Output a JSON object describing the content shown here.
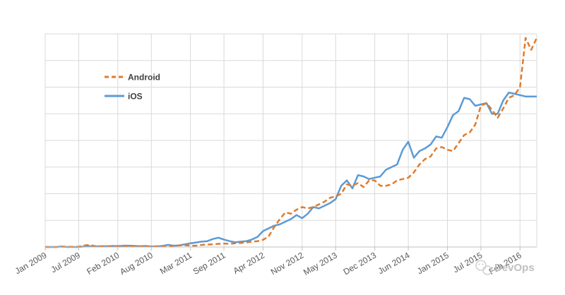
{
  "chart_data": {
    "type": "line",
    "title": "",
    "xlabel": "",
    "ylabel": "",
    "x_tick_labels": [
      "Jan 2009",
      "Jul 2009",
      "Feb 2010",
      "Aug 2010",
      "Mar 2011",
      "Sep 2011",
      "Apr 2012",
      "Nov 2012",
      "May 2013",
      "Dec 2013",
      "Jun 2014",
      "Jan 2015",
      "Jul 2015",
      "Feb 2016"
    ],
    "x_tick_months": [
      0,
      6,
      13,
      19,
      26,
      32,
      39,
      46,
      52,
      59,
      65,
      72,
      78,
      85
    ],
    "x_range_months": [
      0,
      88
    ],
    "y_range": [
      0,
      8
    ],
    "grid": true,
    "grid_lines": 8,
    "legend_position": "upper-left",
    "colors": {
      "android": "#E07B2C",
      "ios": "#5B9BD5",
      "grid": "#d9d9d9",
      "axis": "#bfbfbf"
    },
    "series": [
      {
        "name": "Android",
        "style": "dashed",
        "values": [
          0.0,
          0.0,
          0.0,
          0.01,
          0.01,
          0.01,
          0.01,
          0.06,
          0.08,
          0.03,
          0.03,
          0.03,
          0.03,
          0.04,
          0.03,
          0.04,
          0.04,
          0.03,
          0.02,
          0.02,
          0.03,
          0.04,
          0.03,
          0.05,
          0.06,
          0.07,
          0.05,
          0.05,
          0.08,
          0.09,
          0.1,
          0.12,
          0.13,
          0.12,
          0.14,
          0.15,
          0.17,
          0.2,
          0.22,
          0.27,
          0.4,
          0.75,
          1.05,
          1.3,
          1.25,
          1.4,
          1.5,
          1.45,
          1.5,
          1.6,
          1.7,
          1.85,
          1.9,
          2.0,
          2.35,
          2.3,
          2.4,
          2.25,
          2.5,
          2.5,
          2.3,
          2.3,
          2.35,
          2.5,
          2.55,
          2.6,
          2.8,
          3.1,
          3.3,
          3.4,
          3.7,
          3.75,
          3.65,
          3.6,
          3.9,
          4.2,
          4.3,
          4.6,
          5.3,
          5.4,
          5.15,
          4.85,
          5.2,
          5.6,
          5.7,
          6.0,
          7.85,
          7.4,
          7.85
        ]
      },
      {
        "name": "iOS",
        "style": "solid",
        "values": [
          0.0,
          0.0,
          0.0,
          0.02,
          0.0,
          0.0,
          0.0,
          0.02,
          0.03,
          0.02,
          0.03,
          0.03,
          0.04,
          0.03,
          0.05,
          0.05,
          0.04,
          0.03,
          0.04,
          0.02,
          0.02,
          0.04,
          0.08,
          0.05,
          0.06,
          0.1,
          0.14,
          0.17,
          0.2,
          0.22,
          0.3,
          0.35,
          0.28,
          0.22,
          0.18,
          0.2,
          0.22,
          0.28,
          0.38,
          0.6,
          0.7,
          0.8,
          0.85,
          0.95,
          1.05,
          1.2,
          1.08,
          1.25,
          1.5,
          1.45,
          1.55,
          1.65,
          1.8,
          2.3,
          2.5,
          2.2,
          2.7,
          2.65,
          2.55,
          2.6,
          2.65,
          2.9,
          3.0,
          3.1,
          3.65,
          3.95,
          3.35,
          3.6,
          3.7,
          3.85,
          4.15,
          4.1,
          4.5,
          4.95,
          5.1,
          5.6,
          5.55,
          5.3,
          5.35,
          5.4,
          5.0,
          5.0,
          5.5,
          5.8,
          5.75,
          5.7,
          5.65,
          5.65,
          5.65
        ]
      }
    ]
  },
  "watermark": {
    "text": "DevOps",
    "icon": "wechat-icon"
  }
}
